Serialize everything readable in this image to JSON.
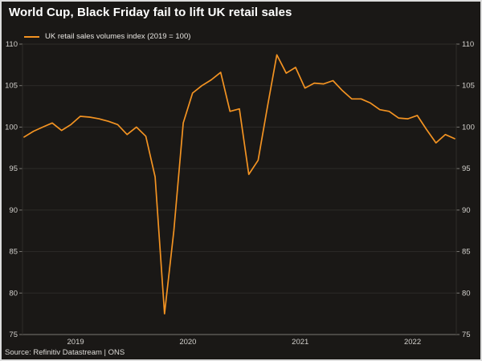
{
  "header": {
    "title": "World Cup, Black Friday fail to lift UK retail sales",
    "legend_label": "UK retail sales volumes index (2019 = 100)"
  },
  "footer": {
    "source": "Source: Refinitiv Datastream | ONS"
  },
  "colors": {
    "background": "#1a1816",
    "frame_border": "#dcdcdc",
    "line": "#f39322",
    "title_text": "#ffffff",
    "axis_text": "#d2d0cc",
    "gridline": "#2d2b28",
    "axis_line": "#7a7873"
  },
  "chart_data": {
    "type": "line",
    "title": "World Cup, Black Friday fail to lift UK retail sales",
    "series": [
      {
        "name": "UK retail sales volumes index (2019 = 100)",
        "values": [
          98.8,
          99.5,
          100.0,
          100.5,
          99.6,
          100.3,
          101.3,
          101.2,
          101.0,
          100.7,
          100.3,
          99.1,
          100.0,
          98.9,
          94.0,
          77.5,
          87.5,
          100.5,
          104.1,
          105.0,
          105.7,
          106.6,
          101.9,
          102.2,
          94.3,
          96.0,
          102.5,
          108.7,
          106.5,
          107.2,
          104.7,
          105.3,
          105.2,
          105.6,
          104.4,
          103.4,
          103.4,
          102.9,
          102.1,
          101.9,
          101.1,
          101.0,
          101.4,
          99.7,
          98.1,
          99.1,
          98.6
        ]
      }
    ],
    "x": [
      "2019-01",
      "2019-02",
      "2019-03",
      "2019-04",
      "2019-05",
      "2019-06",
      "2019-07",
      "2019-08",
      "2019-09",
      "2019-10",
      "2019-11",
      "2019-12",
      "2020-01",
      "2020-02",
      "2020-03",
      "2020-04",
      "2020-05",
      "2020-06",
      "2020-07",
      "2020-08",
      "2020-09",
      "2020-10",
      "2020-11",
      "2020-12",
      "2021-01",
      "2021-02",
      "2021-03",
      "2021-04",
      "2021-05",
      "2021-06",
      "2021-07",
      "2021-08",
      "2021-09",
      "2021-10",
      "2021-11",
      "2021-12",
      "2022-01",
      "2022-02",
      "2022-03",
      "2022-04",
      "2022-05",
      "2022-06",
      "2022-07",
      "2022-08",
      "2022-09",
      "2022-10",
      "2022-11"
    ],
    "x_frequency": "monthly",
    "x_tick_labels": [
      "2019",
      "2020",
      "2021",
      "2022"
    ],
    "y_ticks": [
      75,
      80,
      85,
      90,
      95,
      100,
      105,
      110
    ],
    "ylim": [
      75,
      110
    ],
    "y_axis_sides": "both",
    "grid": "horizontal",
    "legend_position": "top-left",
    "xlabel": "",
    "ylabel": ""
  }
}
